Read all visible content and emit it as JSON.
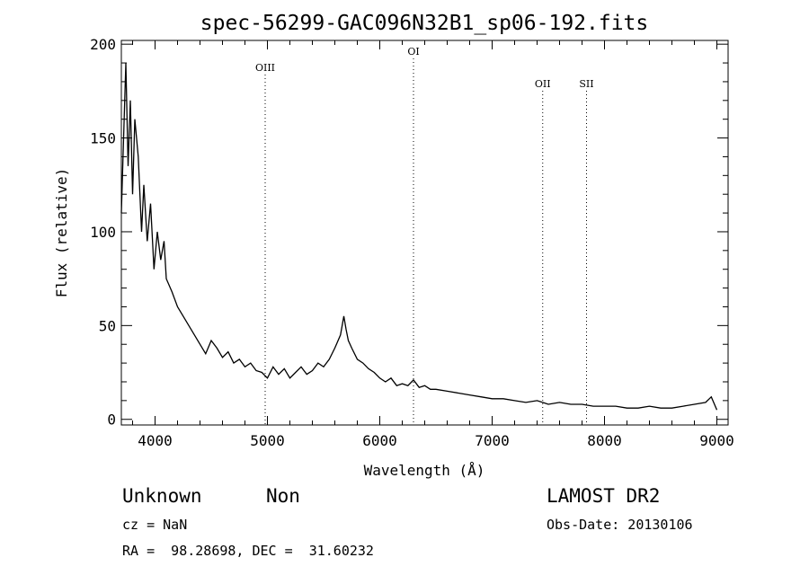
{
  "chart_data": {
    "type": "line",
    "title": "spec-56299-GAC096N32B1_sp06-192.fits",
    "xlabel": "Wavelength (Å)",
    "ylabel": "Flux (relative)",
    "xlim": [
      3700,
      9100
    ],
    "ylim": [
      -3,
      202
    ],
    "x_ticks": [
      4000,
      5000,
      6000,
      7000,
      8000,
      9000
    ],
    "y_ticks": [
      0,
      50,
      100,
      150,
      200
    ],
    "series": [
      {
        "x": [
          3700,
          3720,
          3740,
          3760,
          3780,
          3800,
          3820,
          3850,
          3880,
          3900,
          3930,
          3960,
          3990,
          4020,
          4050,
          4080,
          4100,
          4150,
          4200,
          4250,
          4300,
          4350,
          4400,
          4450,
          4500,
          4550,
          4600,
          4650,
          4700,
          4750,
          4800,
          4850,
          4900,
          4950,
          5000,
          5050,
          5100,
          5150,
          5200,
          5250,
          5300,
          5350,
          5400,
          5450,
          5500,
          5550,
          5600,
          5650,
          5680,
          5700,
          5720,
          5750,
          5800,
          5850,
          5900,
          5950,
          6000,
          6050,
          6100,
          6150,
          6200,
          6250,
          6300,
          6350,
          6400,
          6450,
          6500,
          6600,
          6700,
          6800,
          6900,
          7000,
          7100,
          7200,
          7300,
          7400,
          7450,
          7500,
          7600,
          7700,
          7800,
          7900,
          8000,
          8100,
          8200,
          8300,
          8400,
          8500,
          8600,
          8700,
          8800,
          8900,
          8950,
          9000
        ],
        "y": [
          110,
          150,
          190,
          135,
          170,
          120,
          160,
          140,
          100,
          125,
          95,
          115,
          80,
          100,
          85,
          95,
          75,
          68,
          60,
          55,
          50,
          45,
          40,
          35,
          42,
          38,
          33,
          36,
          30,
          32,
          28,
          30,
          26,
          25,
          22,
          28,
          24,
          27,
          22,
          25,
          28,
          24,
          26,
          30,
          28,
          32,
          38,
          45,
          55,
          48,
          42,
          38,
          32,
          30,
          27,
          25,
          22,
          20,
          22,
          18,
          19,
          18,
          21,
          17,
          18,
          16,
          16,
          15,
          14,
          13,
          12,
          11,
          11,
          10,
          9,
          10,
          9,
          8,
          9,
          8,
          8,
          7,
          7,
          7,
          6,
          6,
          7,
          6,
          6,
          7,
          8,
          9,
          12,
          5
        ]
      }
    ],
    "vlines": [
      {
        "label": "OIII",
        "x": 4980
      },
      {
        "label": "OI",
        "x": 6300
      },
      {
        "label": "OII",
        "x": 7450
      },
      {
        "label": "SII",
        "x": 7840
      }
    ]
  },
  "info": {
    "class": "Unknown",
    "subclass": "Non",
    "cz": "cz = NaN",
    "radec": "RA =  98.28698, DEC =  31.60232",
    "survey": "LAMOST DR2",
    "obsdate": "Obs-Date: 20130106"
  }
}
